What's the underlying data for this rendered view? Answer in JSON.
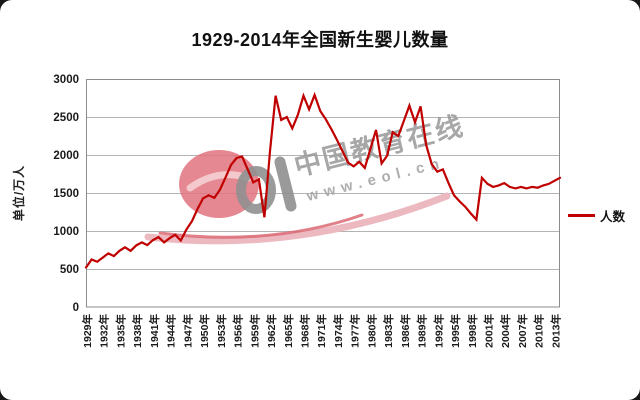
{
  "title": "1929-2014年全国新生婴儿数量",
  "y_axis": {
    "title": "单位/万人",
    "tick_labels": [
      "0",
      "500",
      "1000",
      "1500",
      "2000",
      "2500",
      "3000"
    ]
  },
  "x_axis": {
    "tick_labels": [
      "1929年",
      "1932年",
      "1935年",
      "1938年",
      "1941年",
      "1944年",
      "1947年",
      "1950年",
      "1953年",
      "1956年",
      "1959年",
      "1962年",
      "1965年",
      "1968年",
      "1971年",
      "1974年",
      "1977年",
      "1980年",
      "1983年",
      "1986年",
      "1989年",
      "1992年",
      "1995年",
      "1998年",
      "2001年",
      "2004年",
      "2007年",
      "2010年",
      "2013年"
    ]
  },
  "legend": {
    "label": "人数",
    "color": "#C00000"
  },
  "watermark": {
    "brand_text": "中国教育在线",
    "url_text": "www.eol.cn",
    "logo": "eol-logo"
  },
  "colors": {
    "line": "#C00000",
    "grid": "#b3b3b3",
    "plot_border": "#8c8c8c",
    "watermark_pink": "#e0737e",
    "watermark_pale_pink": "#edb9c0",
    "watermark_gray": "#9b9b9b",
    "text": "#1a1a1a"
  },
  "chart_data": {
    "type": "line",
    "title": "1929-2014年全国新生婴儿数量",
    "xlabel": "",
    "ylabel": "单位/万人",
    "ylim": [
      0,
      3000
    ],
    "y_tick_step": 500,
    "grid": true,
    "legend_position": "right",
    "series_name": "人数",
    "x": [
      1929,
      1930,
      1931,
      1932,
      1933,
      1934,
      1935,
      1936,
      1937,
      1938,
      1939,
      1940,
      1941,
      1942,
      1943,
      1944,
      1945,
      1946,
      1947,
      1948,
      1949,
      1950,
      1951,
      1952,
      1953,
      1954,
      1955,
      1956,
      1957,
      1958,
      1959,
      1960,
      1961,
      1962,
      1963,
      1964,
      1965,
      1966,
      1967,
      1968,
      1969,
      1970,
      1971,
      1972,
      1973,
      1974,
      1975,
      1976,
      1977,
      1978,
      1979,
      1980,
      1981,
      1982,
      1983,
      1984,
      1985,
      1986,
      1987,
      1988,
      1989,
      1990,
      1991,
      1992,
      1993,
      1994,
      1995,
      1996,
      1997,
      1998,
      1999,
      2000,
      2001,
      2002,
      2003,
      2004,
      2005,
      2006,
      2007,
      2008,
      2009,
      2010,
      2011,
      2012,
      2013,
      2014
    ],
    "values": [
      520,
      625,
      595,
      650,
      705,
      670,
      740,
      785,
      740,
      810,
      850,
      815,
      880,
      920,
      850,
      905,
      950,
      875,
      1020,
      1130,
      1290,
      1430,
      1470,
      1435,
      1540,
      1700,
      1870,
      1960,
      1980,
      1810,
      1640,
      1680,
      1180,
      2050,
      2780,
      2460,
      2500,
      2350,
      2530,
      2780,
      2600,
      2790,
      2580,
      2470,
      2340,
      2200,
      2050,
      1900,
      1850,
      1910,
      1830,
      2080,
      2330,
      1890,
      1990,
      2300,
      2250,
      2450,
      2650,
      2430,
      2640,
      2130,
      1880,
      1780,
      1810,
      1630,
      1470,
      1390,
      1320,
      1230,
      1150,
      1700,
      1620,
      1580,
      1600,
      1630,
      1580,
      1560,
      1580,
      1560,
      1580,
      1570,
      1600,
      1620,
      1660,
      1700
    ]
  }
}
